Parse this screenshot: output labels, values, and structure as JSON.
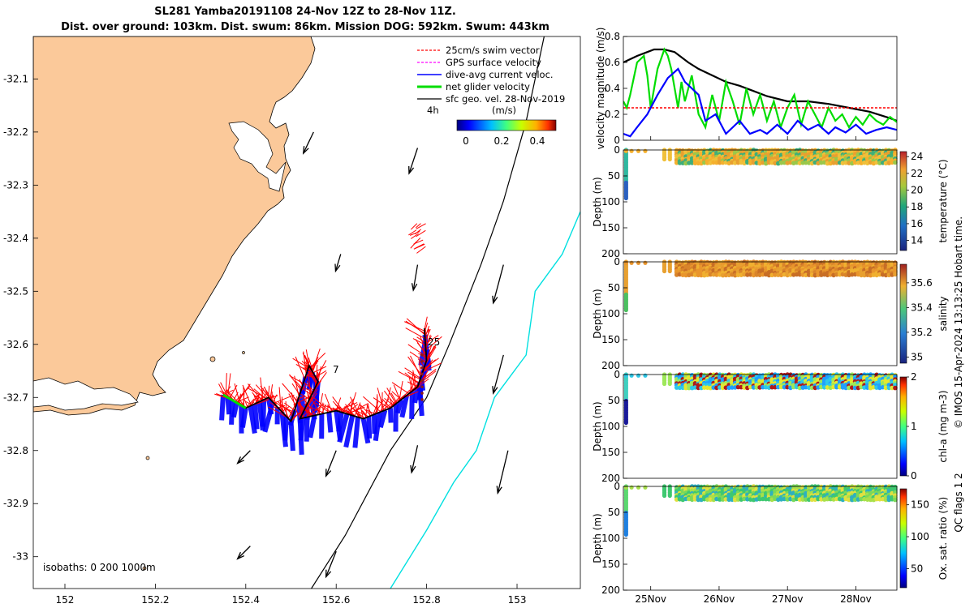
{
  "title_line1": "SL281 Yamba20191108 24-Nov 12Z to 28-Nov 11Z.",
  "title_line2": "Dist. over ground: 103km. Dist. swum: 86km. Mission DOG: 592km. Swum: 443km",
  "colors": {
    "land": "#fbc99a",
    "swim": "#ff0000",
    "gps": "#ff00ff",
    "dive_avg": "#0000ff",
    "net": "#00dd00",
    "geo": "#000000",
    "isobath_200": "#000000",
    "isobath_1000": "#00e0e0"
  },
  "chart_data": [
    {
      "type": "map",
      "x_ticks": [
        "152",
        "152.2",
        "152.4",
        "152.6",
        "152.8",
        "153"
      ],
      "x_tick_values": [
        152,
        152.2,
        152.4,
        152.6,
        152.8,
        153
      ],
      "y_ticks": [
        "-32.1",
        "-32.2",
        "-32.3",
        "-32.4",
        "-32.5",
        "-32.6",
        "-32.7",
        "-32.8",
        "-32.9",
        "-33"
      ],
      "y_tick_values": [
        -32.1,
        -32.2,
        -32.3,
        -32.4,
        -32.5,
        -32.6,
        -32.7,
        -32.8,
        -32.9,
        -33
      ],
      "xlim": [
        151.93,
        153.14
      ],
      "ylim": [
        -33.06,
        -32.02
      ],
      "legend": {
        "placement": "top-right",
        "entries": [
          "25cm/s swim vector",
          "GPS surface velocity",
          "dive-avg current veloc.",
          "net glider velocity",
          "sfc geo. vel. 28-Nov-2019"
        ]
      },
      "scale_label": "4h",
      "colorbar": {
        "label": "(m/s)",
        "ticks": [
          "0",
          "0.2",
          "0.4"
        ],
        "tick_values": [
          0,
          0.2,
          0.4
        ],
        "range": [
          0,
          0.5
        ]
      },
      "isobath_label": "isobaths: 0   200  1000m",
      "track_labels": [
        {
          "text": "25",
          "lon": 152.805,
          "lat": -32.61
        },
        {
          "text": "7",
          "lon": 152.557,
          "lat": -32.66
        }
      ],
      "glider_track": [
        [
          152.35,
          -32.695
        ],
        [
          152.4,
          -32.72
        ],
        [
          152.45,
          -32.7
        ],
        [
          152.5,
          -32.745
        ],
        [
          152.54,
          -32.64
        ],
        [
          152.56,
          -32.67
        ],
        [
          152.52,
          -32.74
        ],
        [
          152.6,
          -32.725
        ],
        [
          152.66,
          -32.74
        ],
        [
          152.72,
          -32.72
        ],
        [
          152.78,
          -32.68
        ],
        [
          152.8,
          -32.63
        ],
        [
          152.795,
          -32.57
        ]
      ],
      "isobath_200": [
        [
          152.545,
          -33.06
        ],
        [
          152.62,
          -32.96
        ],
        [
          152.72,
          -32.8
        ],
        [
          152.8,
          -32.7
        ],
        [
          152.85,
          -32.6
        ],
        [
          152.92,
          -32.45
        ],
        [
          152.97,
          -32.33
        ],
        [
          153.02,
          -32.18
        ],
        [
          153.06,
          -32.02
        ]
      ],
      "isobath_1000": [
        [
          152.72,
          -33.06
        ],
        [
          152.8,
          -32.95
        ],
        [
          152.86,
          -32.86
        ],
        [
          152.91,
          -32.8
        ],
        [
          152.95,
          -32.7
        ],
        [
          153.02,
          -32.62
        ],
        [
          153.04,
          -32.5
        ],
        [
          153.1,
          -32.43
        ],
        [
          153.14,
          -32.35
        ]
      ],
      "geo_vectors": [
        {
          "lon": 152.55,
          "lat": -32.2,
          "u": -0.12,
          "v": -0.25
        },
        {
          "lon": 152.78,
          "lat": -32.23,
          "u": -0.1,
          "v": -0.3
        },
        {
          "lon": 152.61,
          "lat": -32.43,
          "u": -0.06,
          "v": -0.2
        },
        {
          "lon": 152.78,
          "lat": -32.45,
          "u": -0.05,
          "v": -0.3
        },
        {
          "lon": 152.97,
          "lat": -32.45,
          "u": -0.12,
          "v": -0.45
        },
        {
          "lon": 152.97,
          "lat": -32.62,
          "u": -0.12,
          "v": -0.45
        },
        {
          "lon": 152.41,
          "lat": -32.8,
          "u": -0.15,
          "v": -0.15
        },
        {
          "lon": 152.6,
          "lat": -32.8,
          "u": -0.12,
          "v": -0.3
        },
        {
          "lon": 152.78,
          "lat": -32.79,
          "u": -0.07,
          "v": -0.32
        },
        {
          "lon": 152.98,
          "lat": -32.8,
          "u": -0.12,
          "v": -0.5
        },
        {
          "lon": 152.41,
          "lat": -32.98,
          "u": -0.15,
          "v": -0.15
        },
        {
          "lon": 152.6,
          "lat": -32.99,
          "u": -0.12,
          "v": -0.3
        }
      ]
    },
    {
      "type": "line",
      "ylabel": "velocity magnitude (m/s)",
      "ylim": [
        0,
        0.8
      ],
      "y_ticks": [
        "0",
        "0.2",
        "0.4",
        "0.6",
        "0.8"
      ],
      "y_tick_values": [
        0,
        0.2,
        0.4,
        0.6,
        0.8
      ],
      "x_ticks": [
        "25Nov",
        "26Nov",
        "27Nov",
        "28Nov"
      ],
      "xlim": [
        0,
        4
      ],
      "series": [
        {
          "color": "#000000",
          "x": [
            0,
            0.2,
            0.35,
            0.45,
            0.6,
            0.75,
            0.95,
            1.1,
            1.3,
            1.5,
            1.7,
            1.9,
            2.1,
            2.4,
            2.7,
            3.0,
            3.3,
            3.6,
            3.9,
            4.0
          ],
          "y": [
            0.6,
            0.65,
            0.68,
            0.7,
            0.7,
            0.68,
            0.6,
            0.55,
            0.5,
            0.45,
            0.42,
            0.38,
            0.34,
            0.3,
            0.3,
            0.28,
            0.25,
            0.22,
            0.17,
            0.15
          ]
        },
        {
          "color": "#00dd00",
          "x": [
            0,
            0.05,
            0.1,
            0.2,
            0.3,
            0.35,
            0.4,
            0.5,
            0.6,
            0.65,
            0.7,
            0.8,
            0.85,
            0.9,
            1.0,
            1.1,
            1.2,
            1.3,
            1.4,
            1.5,
            1.6,
            1.7,
            1.8,
            1.9,
            2.0,
            2.1,
            2.2,
            2.3,
            2.4,
            2.5,
            2.6,
            2.7,
            2.8,
            2.9,
            3.0,
            3.1,
            3.2,
            3.3,
            3.4,
            3.5,
            3.6,
            3.7,
            3.8,
            3.9,
            4.0
          ],
          "y": [
            0.3,
            0.25,
            0.35,
            0.6,
            0.65,
            0.5,
            0.25,
            0.55,
            0.7,
            0.65,
            0.55,
            0.25,
            0.45,
            0.3,
            0.5,
            0.2,
            0.1,
            0.35,
            0.15,
            0.45,
            0.3,
            0.12,
            0.4,
            0.2,
            0.35,
            0.15,
            0.3,
            0.1,
            0.25,
            0.35,
            0.12,
            0.3,
            0.2,
            0.1,
            0.25,
            0.15,
            0.2,
            0.1,
            0.18,
            0.12,
            0.2,
            0.15,
            0.12,
            0.18,
            0.14
          ]
        },
        {
          "color": "#ff0000",
          "dashed": true,
          "x": [
            0,
            0.95,
            1.0,
            2.2,
            3.0,
            4.0
          ],
          "y": [
            0.25,
            0.25,
            0.25,
            0.25,
            0.25,
            0.25
          ]
        },
        {
          "color": "#0000ff",
          "x": [
            0,
            0.1,
            0.2,
            0.35,
            0.5,
            0.65,
            0.8,
            0.9,
            1.0,
            1.1,
            1.2,
            1.35,
            1.5,
            1.6,
            1.7,
            1.85,
            2.0,
            2.1,
            2.25,
            2.4,
            2.55,
            2.7,
            2.85,
            3.0,
            3.1,
            3.25,
            3.4,
            3.55,
            3.7,
            3.85,
            4.0
          ],
          "y": [
            0.05,
            0.03,
            0.1,
            0.2,
            0.35,
            0.48,
            0.55,
            0.45,
            0.4,
            0.35,
            0.15,
            0.2,
            0.05,
            0.1,
            0.15,
            0.05,
            0.08,
            0.05,
            0.12,
            0.05,
            0.15,
            0.08,
            0.12,
            0.05,
            0.1,
            0.06,
            0.12,
            0.05,
            0.08,
            0.1,
            0.08
          ]
        }
      ]
    },
    {
      "type": "scatter",
      "ylabel": "Depth (m)",
      "ylim": [
        0,
        200
      ],
      "y_ticks": [
        "0",
        "50",
        "100",
        "150",
        "200"
      ],
      "y_tick_values": [
        0,
        50,
        100,
        150,
        200
      ],
      "colorbar": {
        "label": "temperature (°C)",
        "ticks": [
          "14",
          "16",
          "18",
          "20",
          "22",
          "24"
        ],
        "tick_values": [
          14,
          16,
          18,
          20,
          22,
          24
        ],
        "range": [
          12.8,
          24.6
        ]
      },
      "profiles": {
        "near_surface": 20,
        "mid_gap_start": 0.55,
        "gap": [
          0.05,
          0.25
        ],
        "deep_profile_depth": 95
      }
    },
    {
      "type": "scatter",
      "ylabel": "Depth (m)",
      "ylim": [
        0,
        200
      ],
      "y_ticks": [
        "0",
        "50",
        "100",
        "150",
        "200"
      ],
      "y_tick_values": [
        0,
        50,
        100,
        150,
        200
      ],
      "colorbar": {
        "label": "salinity",
        "ticks": [
          "35",
          "35.2",
          "35.4",
          "35.6"
        ],
        "tick_values": [
          35,
          35.2,
          35.4,
          35.6
        ],
        "range": [
          34.95,
          35.75
        ]
      },
      "side_label": "QC flags 1  2"
    },
    {
      "type": "scatter",
      "ylabel": "Depth (m)",
      "ylim": [
        0,
        200
      ],
      "y_ticks": [
        "0",
        "50",
        "100",
        "150",
        "200"
      ],
      "y_tick_values": [
        0,
        50,
        100,
        150,
        200
      ],
      "colorbar": {
        "label": "chl-a (mg m-3)",
        "ticks": [
          "0",
          "1",
          "2"
        ],
        "tick_values": [
          0,
          1,
          2
        ],
        "range": [
          0,
          2
        ]
      }
    },
    {
      "type": "scatter",
      "ylabel": "Depth (m)",
      "ylim": [
        0,
        200
      ],
      "y_ticks": [
        "0",
        "50",
        "100",
        "150",
        "200"
      ],
      "y_tick_values": [
        0,
        50,
        100,
        150,
        200
      ],
      "x_ticks": [
        "25Nov",
        "26Nov",
        "27Nov",
        "28Nov"
      ],
      "x_tick_values": [
        0.4,
        1.4,
        2.4,
        3.4
      ],
      "xlim": [
        0,
        4
      ],
      "colorbar": {
        "label": "Ox. sat. ratio (%)",
        "ticks": [
          "50",
          "100",
          "150"
        ],
        "tick_values": [
          50,
          100,
          150
        ],
        "range": [
          20,
          175
        ]
      }
    }
  ],
  "credit": "© IMOS 15-Apr-2024 13:13:25 Hobart time."
}
